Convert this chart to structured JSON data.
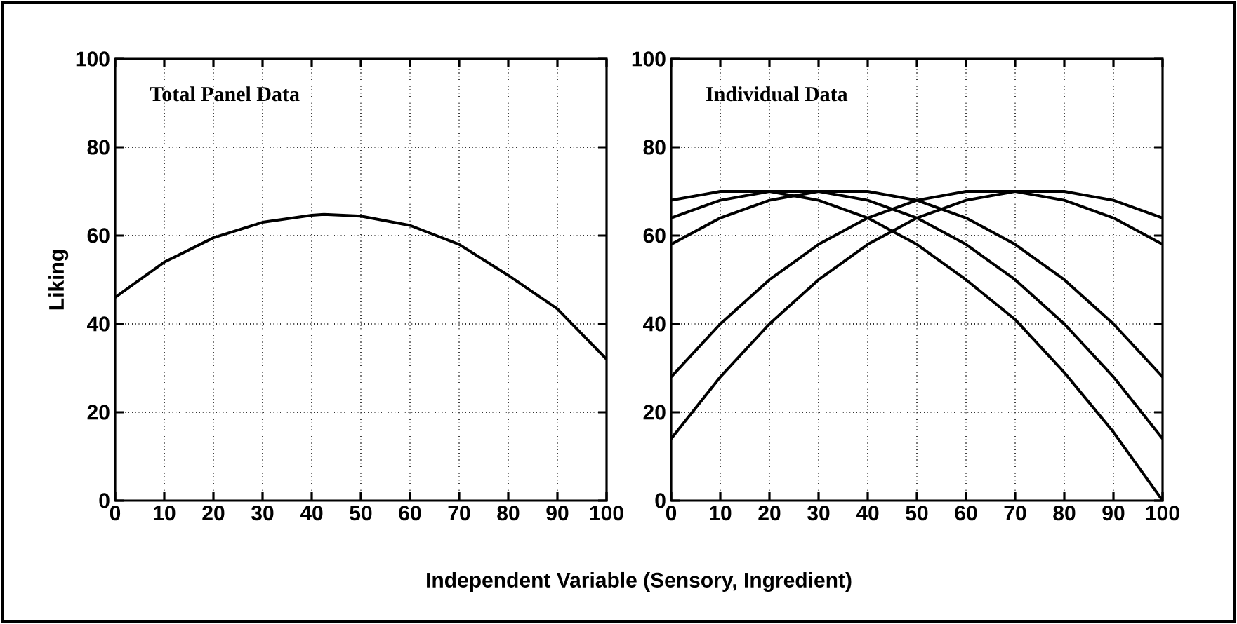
{
  "chart_data": [
    {
      "type": "line",
      "title": "Total Panel Data",
      "xlabel": "Independent Variable (Sensory, Ingredient)",
      "ylabel": "Liking",
      "x": [
        0,
        10,
        20,
        30,
        40,
        42.5,
        50,
        60,
        70,
        80,
        90,
        100
      ],
      "series": [
        {
          "color": "#000000",
          "values": [
            46,
            54,
            59.5,
            63,
            64.6,
            64.8,
            64.4,
            62.3,
            58,
            51,
            43.4,
            32
          ]
        }
      ],
      "xlim": [
        0,
        100
      ],
      "ylim": [
        0,
        100
      ],
      "xticks": [
        0,
        10,
        20,
        30,
        40,
        50,
        60,
        70,
        80,
        90,
        100
      ],
      "yticks": [
        0,
        20,
        40,
        60,
        80,
        100
      ],
      "grid": true,
      "line_style": "solid"
    },
    {
      "type": "line",
      "title": "Individual Data",
      "x": [
        0,
        10,
        20,
        30,
        40,
        50,
        60,
        70,
        80,
        90,
        100
      ],
      "series": [
        {
          "color": "#000000",
          "values": [
            68,
            70,
            70,
            68,
            64,
            58,
            50,
            41,
            29,
            15.5,
            0
          ]
        },
        {
          "color": "#000000",
          "values": [
            64,
            68,
            70,
            70,
            68,
            64,
            58,
            50,
            40,
            28,
            14
          ]
        },
        {
          "color": "#000000",
          "values": [
            58,
            64,
            68,
            70,
            70,
            68,
            64,
            58,
            50,
            40,
            28
          ]
        },
        {
          "color": "#000000",
          "values": [
            28,
            40,
            50,
            58,
            64,
            68,
            70,
            70,
            68,
            64,
            58
          ]
        },
        {
          "color": "#000000",
          "values": [
            14,
            28,
            40,
            50,
            58,
            64,
            68,
            70,
            70,
            68,
            64
          ]
        }
      ],
      "xlim": [
        0,
        100
      ],
      "ylim": [
        0,
        100
      ],
      "xticks": [
        0,
        10,
        20,
        30,
        40,
        50,
        60,
        70,
        80,
        90,
        100
      ],
      "yticks": [
        0,
        20,
        40,
        60,
        80,
        100
      ],
      "grid": true,
      "line_style": "solid"
    }
  ]
}
